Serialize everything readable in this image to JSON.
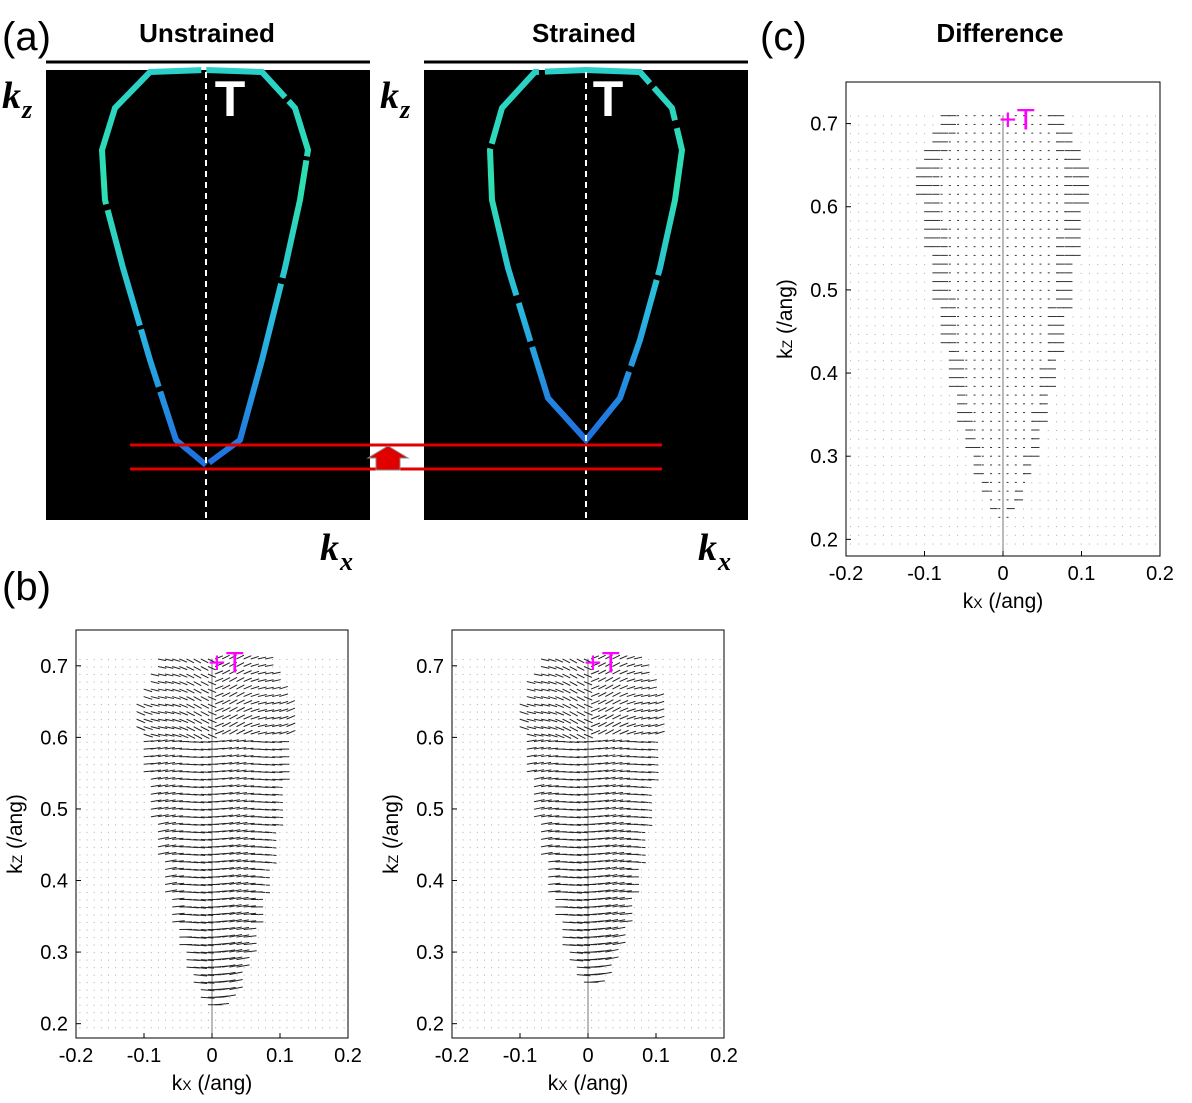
{
  "panel_a": {
    "letter": "(a)",
    "titles": [
      "Unstrained",
      "Strained"
    ],
    "kz_label": "k",
    "kz_sub": "z",
    "kx_label": "k",
    "kx_sub": "x",
    "gamma_label": "T"
  },
  "panel_b": {
    "letter": "(b)"
  },
  "panel_c": {
    "letter": "(c)",
    "title": "Difference"
  },
  "plot_text": {
    "xlabel": "k",
    "xlabel_sub": "X",
    "xlabel_unit": " (/ang)",
    "ylabel": "k",
    "ylabel_sub": "Z",
    "ylabel_unit": " (/ang)",
    "gamma_marker": "+T"
  },
  "colors": {
    "fs_inner": "#1f6fe0",
    "fs_outer": "#2fe0b0",
    "strain_lines": "#e00000",
    "gamma": "#ff00ff"
  },
  "chart_data": [
    {
      "type": "scatter",
      "panel": "b-left",
      "description_of_marks": "quiver",
      "x_ticks": [
        -0.2,
        -0.1,
        0,
        0.1,
        0.2
      ],
      "y_ticks": [
        0.2,
        0.3,
        0.4,
        0.5,
        0.6,
        0.7
      ],
      "xlim": [
        -0.2,
        0.2
      ],
      "ylim": [
        0.18,
        0.75
      ],
      "xlabel": "kX (/ang)",
      "ylabel": "kZ (/ang)",
      "fermi_pocket": {
        "bottom": 0.22,
        "top": 0.71,
        "max_halfwidth": 0.12
      }
    },
    {
      "type": "scatter",
      "panel": "b-right",
      "description_of_marks": "quiver",
      "x_ticks": [
        -0.2,
        -0.1,
        0,
        0.1,
        0.2
      ],
      "y_ticks": [
        0.2,
        0.3,
        0.4,
        0.5,
        0.6,
        0.7
      ],
      "xlim": [
        -0.2,
        0.2
      ],
      "ylim": [
        0.18,
        0.75
      ],
      "xlabel": "kX (/ang)",
      "ylabel": "kZ (/ang)",
      "fermi_pocket": {
        "bottom": 0.25,
        "top": 0.71,
        "max_halfwidth": 0.11
      }
    },
    {
      "type": "scatter",
      "panel": "c",
      "description_of_marks": "quiver",
      "x_ticks": [
        -0.2,
        -0.1,
        0,
        0.1,
        0.2
      ],
      "y_ticks": [
        0.2,
        0.3,
        0.4,
        0.5,
        0.6,
        0.7
      ],
      "xlim": [
        -0.2,
        0.2
      ],
      "ylim": [
        0.18,
        0.75
      ],
      "xlabel": "kX (/ang)",
      "ylabel": "kZ (/ang)",
      "fermi_pocket": {
        "bottom": 0.22,
        "top": 0.71,
        "max_halfwidth": 0.12
      }
    }
  ]
}
